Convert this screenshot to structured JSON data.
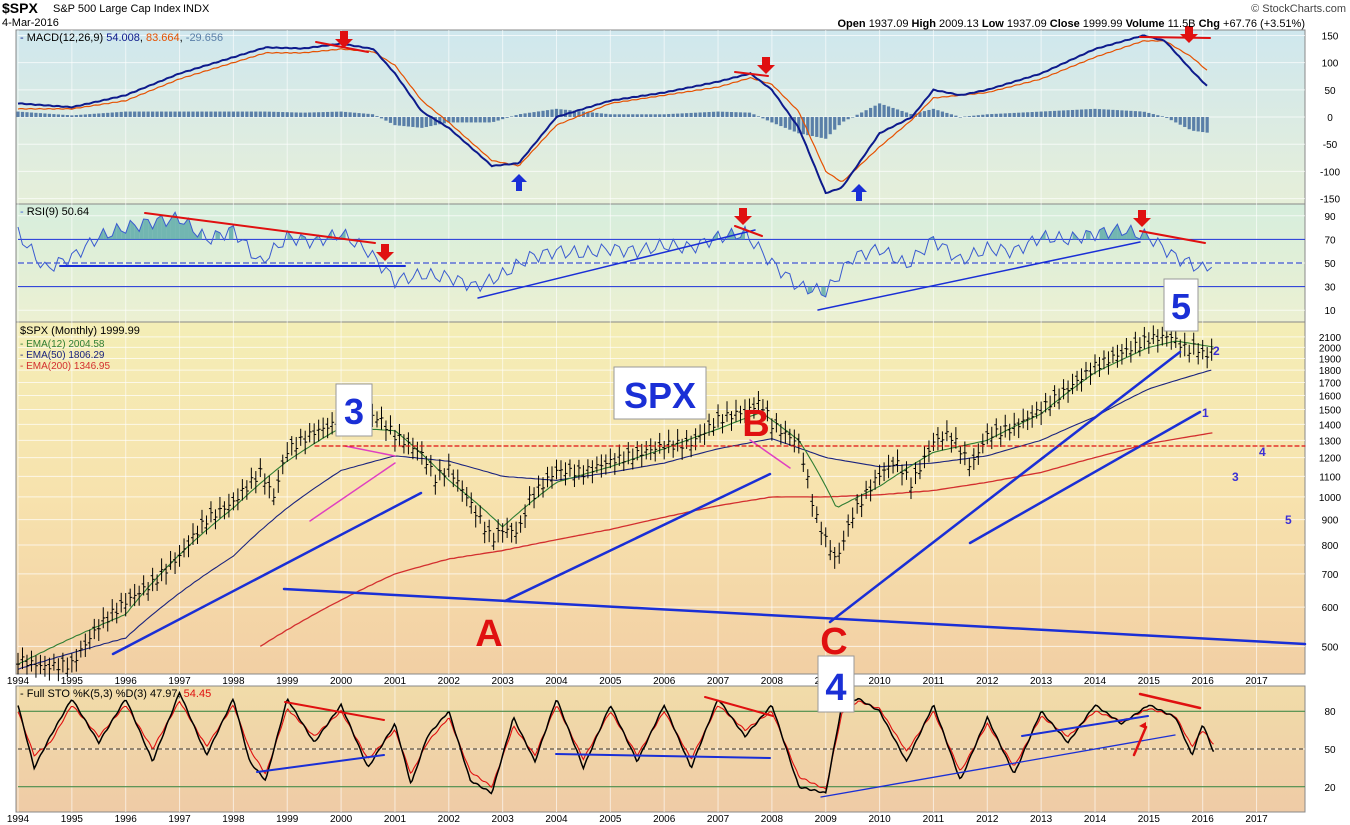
{
  "header": {
    "symbol": "$SPX",
    "name": "S&P 500 Large Cap Index",
    "exchange": "INDX",
    "date": "4-Mar-2016",
    "open_label": "Open",
    "open": "1937.09",
    "high_label": "High",
    "high": "2009.13",
    "low_label": "Low",
    "low": "1937.09",
    "close_label": "Close",
    "close": "1999.99",
    "volume_label": "Volume",
    "volume": "11.5B",
    "chg_label": "Chg",
    "chg": "+67.76 (+3.51%)",
    "watermark": "© StockCharts.com"
  },
  "colors": {
    "price_up": "#000000",
    "ema12": "#2e7d32",
    "ema50": "#1a237e",
    "ema200": "#d32f2f",
    "macd": "#0d1a8c",
    "signal": "#e65100",
    "histogram": "#5a7fa8",
    "rsi": "#3a5bd0",
    "rsi_fill": "#4fa3a3",
    "trend_blue": "#1a2fd6",
    "trend_red": "#e01010",
    "trend_pink": "#e040c0",
    "label_red": "#e01010",
    "label_blue": "#1a2fd6"
  },
  "chart_data": [
    {
      "type": "line",
      "panel": "macd",
      "legend": "MACD(12,26,9)",
      "values_text": [
        "54.008",
        "83.664",
        "-29.656"
      ],
      "ylim": [
        -160,
        160
      ],
      "y_ticks": [
        150,
        100,
        50,
        0,
        -50,
        -100,
        -150
      ],
      "series": [
        {
          "name": "MACD",
          "x": [
            1994.0,
            1995.0,
            1996.0,
            1997.0,
            1998.0,
            1998.6,
            1999.3,
            2000.0,
            2000.6,
            2001.0,
            2001.5,
            2002.0,
            2002.8,
            2003.3,
            2004.0,
            2005.0,
            2006.0,
            2007.0,
            2007.6,
            2008.0,
            2008.5,
            2009.0,
            2009.3,
            2010.0,
            2010.6,
            2011.0,
            2011.5,
            2012.0,
            2013.0,
            2014.0,
            2014.9,
            2015.3,
            2015.8,
            2016.1
          ],
          "values": [
            25,
            18,
            40,
            80,
            110,
            128,
            126,
            135,
            125,
            80,
            10,
            -20,
            -90,
            -85,
            0,
            30,
            45,
            65,
            80,
            50,
            -20,
            -140,
            -130,
            -30,
            0,
            50,
            40,
            50,
            80,
            125,
            150,
            140,
            85,
            55
          ]
        },
        {
          "name": "Signal",
          "x": [
            1994.0,
            1995.0,
            1996.0,
            1997.0,
            1998.0,
            1998.6,
            1999.3,
            2000.0,
            2000.6,
            2001.0,
            2001.5,
            2002.0,
            2002.8,
            2003.3,
            2004.0,
            2005.0,
            2006.0,
            2007.0,
            2007.6,
            2008.0,
            2008.5,
            2009.0,
            2009.3,
            2010.0,
            2010.6,
            2011.0,
            2011.5,
            2012.0,
            2013.0,
            2014.0,
            2014.9,
            2015.3,
            2015.8,
            2016.1
          ],
          "values": [
            15,
            15,
            30,
            70,
            100,
            118,
            118,
            125,
            120,
            95,
            30,
            -10,
            -80,
            -90,
            -15,
            25,
            40,
            55,
            72,
            60,
            10,
            -100,
            -120,
            -55,
            -5,
            35,
            40,
            45,
            70,
            110,
            140,
            140,
            110,
            84
          ]
        }
      ],
      "histogram": {
        "x": [
          1994.0,
          1995.0,
          1996.0,
          1997.0,
          1998.0,
          1998.6,
          1999.3,
          2000.0,
          2000.6,
          2001.0,
          2001.5,
          2002.0,
          2002.8,
          2003.3,
          2004.0,
          2005.0,
          2006.0,
          2007.0,
          2007.6,
          2008.0,
          2008.5,
          2009.0,
          2009.3,
          2010.0,
          2010.6,
          2011.0,
          2011.5,
          2012.0,
          2013.0,
          2014.0,
          2014.9,
          2015.3,
          2015.8,
          2016.1
        ],
        "values": [
          10,
          3,
          10,
          10,
          10,
          10,
          8,
          10,
          5,
          -15,
          -20,
          -10,
          -10,
          5,
          15,
          5,
          5,
          10,
          8,
          -10,
          -30,
          -40,
          -10,
          25,
          5,
          15,
          0,
          5,
          10,
          15,
          10,
          0,
          -25,
          -29
        ]
      },
      "annotations": [
        "down-arrow",
        "down-arrow",
        "up-arrow",
        "up-arrow",
        "down-arrow"
      ]
    },
    {
      "type": "line",
      "panel": "rsi",
      "legend": "RSI(9)",
      "values_text": [
        "50.64"
      ],
      "ylim": [
        0,
        100
      ],
      "y_ticks": [
        90,
        70,
        50,
        30,
        10
      ],
      "series": [
        {
          "name": "RSI",
          "x": [
            1994.0,
            1994.5,
            1995.0,
            1995.5,
            1996.0,
            1996.5,
            1997.0,
            1997.5,
            1998.0,
            1998.5,
            1999.0,
            1999.5,
            2000.0,
            2000.5,
            2001.0,
            2001.5,
            2002.0,
            2002.5,
            2003.0,
            2003.5,
            2004.0,
            2004.5,
            2005.0,
            2005.5,
            2006.0,
            2006.5,
            2007.0,
            2007.5,
            2008.0,
            2008.5,
            2009.0,
            2009.5,
            2010.0,
            2010.5,
            2011.0,
            2011.5,
            2012.0,
            2012.5,
            2013.0,
            2013.5,
            2014.0,
            2014.5,
            2015.0,
            2015.5,
            2016.0,
            2016.2
          ],
          "values": [
            75,
            45,
            55,
            72,
            80,
            85,
            88,
            70,
            78,
            50,
            72,
            68,
            75,
            60,
            35,
            40,
            38,
            30,
            40,
            55,
            60,
            58,
            62,
            60,
            65,
            63,
            72,
            75,
            50,
            30,
            25,
            55,
            62,
            48,
            70,
            52,
            62,
            60,
            72,
            70,
            75,
            78,
            72,
            55,
            45,
            50
          ]
        }
      ],
      "annotations": [
        "down-arrow",
        "down-arrow",
        "down-arrow"
      ]
    },
    {
      "type": "line",
      "panel": "price",
      "title": "$SPX (Monthly) 1999.99",
      "legend": [
        {
          "name": "EMA(12)",
          "value": "2004.58"
        },
        {
          "name": "EMA(50)",
          "value": "1806.29"
        },
        {
          "name": "EMA(200)",
          "value": "1346.95"
        }
      ],
      "y_ticks": [
        2100,
        2000,
        1900,
        1800,
        1700,
        1600,
        1500,
        1400,
        1300,
        1200,
        1100,
        1000,
        900,
        800,
        700,
        600,
        500
      ],
      "x_ticks": [
        "1994",
        "1995",
        "1996",
        "1997",
        "1998",
        "1999",
        "2000",
        "2001",
        "2002",
        "2003",
        "2004",
        "2005",
        "2006",
        "2007",
        "2008",
        "2009",
        "2010",
        "2011",
        "2012",
        "2013",
        "2014",
        "2015",
        "2016",
        "2017"
      ],
      "x_ticks_lower": [
        "1994",
        "1995",
        "1996",
        "1997",
        "1998",
        "1999",
        "2000",
        "2001",
        "2002",
        "2003",
        "2004",
        "2005",
        "2006",
        "2007",
        "2008",
        "2009",
        "2010",
        "2011",
        "2012",
        "2013",
        "2014",
        "2015",
        "2016",
        "2017"
      ],
      "series": [
        {
          "name": "SPX",
          "x": [
            1994.0,
            1994.5,
            1995.0,
            1995.5,
            1996.0,
            1996.5,
            1997.0,
            1997.5,
            1998.0,
            1998.5,
            1998.75,
            1999.0,
            1999.5,
            2000.0,
            2000.2,
            2000.7,
            2001.0,
            2001.5,
            2001.75,
            2002.0,
            2002.5,
            2002.8,
            2003.0,
            2003.3,
            2003.5,
            2004.0,
            2004.5,
            2005.0,
            2005.5,
            2006.0,
            2006.5,
            2007.0,
            2007.5,
            2007.8,
            2008.0,
            2008.5,
            2008.8,
            2009.0,
            2009.2,
            2009.5,
            2010.0,
            2010.3,
            2010.6,
            2011.0,
            2011.3,
            2011.7,
            2012.0,
            2012.5,
            2013.0,
            2013.5,
            2014.0,
            2014.5,
            2015.0,
            2015.4,
            2015.7,
            2015.9,
            2016.0,
            2016.1,
            2016.2
          ],
          "values": [
            470,
            455,
            460,
            550,
            615,
            670,
            760,
            900,
            975,
            1120,
            1000,
            1240,
            1350,
            1420,
            1500,
            1440,
            1330,
            1220,
            1090,
            1140,
            930,
            820,
            860,
            850,
            990,
            1130,
            1120,
            1180,
            1220,
            1270,
            1280,
            1430,
            1490,
            1550,
            1400,
            1280,
            920,
            820,
            740,
            920,
            1110,
            1180,
            1060,
            1290,
            1340,
            1150,
            1330,
            1380,
            1500,
            1650,
            1830,
            1950,
            2080,
            2110,
            1980,
            2000,
            1940,
            1930,
            2000
          ]
        },
        {
          "name": "EMA(12)",
          "x": [
            1994.0,
            1996.0,
            1998.0,
            1999.0,
            2000.0,
            2001.0,
            2002.0,
            2003.0,
            2004.0,
            2005.0,
            2006.0,
            2007.0,
            2007.8,
            2008.5,
            2009.2,
            2010.0,
            2011.0,
            2012.0,
            2013.0,
            2014.0,
            2015.0,
            2015.5,
            2016.2
          ],
          "values": [
            460,
            580,
            950,
            1180,
            1380,
            1360,
            1080,
            870,
            1070,
            1150,
            1250,
            1370,
            1480,
            1300,
            950,
            1050,
            1230,
            1300,
            1470,
            1780,
            2000,
            2060,
            2004
          ]
        },
        {
          "name": "EMA(50)",
          "x": [
            1994.0,
            1996.0,
            1998.0,
            1999.0,
            2000.0,
            2001.0,
            2002.0,
            2003.0,
            2004.0,
            2005.0,
            2006.0,
            2007.0,
            2008.0,
            2009.0,
            2010.0,
            2011.0,
            2012.0,
            2013.0,
            2014.0,
            2015.0,
            2016.2
          ],
          "values": [
            450,
            520,
            760,
            950,
            1130,
            1210,
            1180,
            1100,
            1080,
            1120,
            1170,
            1250,
            1310,
            1200,
            1150,
            1170,
            1210,
            1300,
            1450,
            1650,
            1806
          ]
        },
        {
          "name": "EMA(200)",
          "x": [
            1998.5,
            1999.0,
            2000.0,
            2001.0,
            2002.0,
            2003.0,
            2004.0,
            2005.0,
            2006.0,
            2007.0,
            2008.0,
            2009.0,
            2010.0,
            2011.0,
            2012.0,
            2013.0,
            2014.0,
            2015.0,
            2016.2
          ],
          "values": [
            500,
            540,
            620,
            700,
            750,
            780,
            820,
            860,
            910,
            960,
            1000,
            1000,
            1010,
            1030,
            1070,
            1120,
            1200,
            1280,
            1347
          ]
        }
      ],
      "labels": {
        "spx_box": "SPX",
        "wave_3_top": "3",
        "wave_5_top": "5",
        "wave_4_bottom": "4",
        "wave_a": "A",
        "wave_b": "B",
        "wave_c": "C",
        "right_2": "2",
        "right_1": "1",
        "right_4": "4",
        "right_3": "3",
        "right_5": "5"
      }
    },
    {
      "type": "line",
      "panel": "stochastic",
      "legend": "Full STO %K(5,3) %D(3)",
      "values_text": [
        "47.97",
        "54.45"
      ],
      "ylim": [
        0,
        100
      ],
      "y_ticks": [
        80,
        50,
        20
      ],
      "series": [
        {
          "name": "%K",
          "x": [
            1994.0,
            1994.3,
            1994.6,
            1995.0,
            1995.5,
            1996.0,
            1996.5,
            1997.0,
            1997.5,
            1998.0,
            1998.3,
            1998.6,
            1999.0,
            1999.5,
            2000.0,
            2000.5,
            2001.0,
            2001.3,
            2001.6,
            2002.0,
            2002.4,
            2002.8,
            2003.2,
            2003.6,
            2004.0,
            2004.5,
            2005.0,
            2005.5,
            2006.0,
            2006.5,
            2007.0,
            2007.5,
            2008.0,
            2008.5,
            2009.0,
            2009.3,
            2009.6,
            2010.0,
            2010.5,
            2011.0,
            2011.5,
            2012.0,
            2012.5,
            2013.0,
            2013.5,
            2014.0,
            2014.5,
            2015.0,
            2015.5,
            2015.8,
            2016.0,
            2016.2
          ],
          "values": [
            85,
            35,
            60,
            90,
            55,
            90,
            40,
            95,
            45,
            90,
            40,
            25,
            90,
            55,
            85,
            35,
            70,
            22,
            60,
            80,
            25,
            15,
            75,
            40,
            90,
            35,
            85,
            40,
            85,
            35,
            90,
            60,
            85,
            20,
            15,
            85,
            90,
            80,
            40,
            85,
            25,
            75,
            30,
            80,
            55,
            85,
            70,
            85,
            75,
            45,
            70,
            48
          ]
        },
        {
          "name": "%D",
          "x": [
            1994.0,
            1994.3,
            1994.6,
            1995.0,
            1995.5,
            1996.0,
            1996.5,
            1997.0,
            1997.5,
            1998.0,
            1998.3,
            1998.6,
            1999.0,
            1999.5,
            2000.0,
            2000.5,
            2001.0,
            2001.3,
            2001.6,
            2002.0,
            2002.4,
            2002.8,
            2003.2,
            2003.6,
            2004.0,
            2004.5,
            2005.0,
            2005.5,
            2006.0,
            2006.5,
            2007.0,
            2007.5,
            2008.0,
            2008.5,
            2009.0,
            2009.3,
            2009.6,
            2010.0,
            2010.5,
            2011.0,
            2011.5,
            2012.0,
            2012.5,
            2013.0,
            2013.5,
            2014.0,
            2014.5,
            2015.0,
            2015.5,
            2015.8,
            2016.0,
            2016.2
          ],
          "values": [
            80,
            45,
            55,
            85,
            60,
            85,
            50,
            88,
            52,
            85,
            50,
            30,
            82,
            60,
            80,
            42,
            65,
            30,
            55,
            75,
            32,
            20,
            68,
            45,
            85,
            42,
            80,
            45,
            80,
            42,
            85,
            65,
            80,
            28,
            18,
            78,
            88,
            82,
            48,
            80,
            32,
            70,
            36,
            76,
            60,
            80,
            72,
            82,
            76,
            52,
            65,
            54
          ]
        }
      ]
    }
  ]
}
